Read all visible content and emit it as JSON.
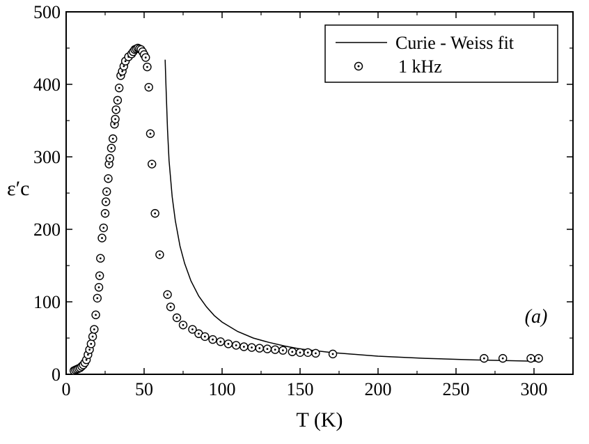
{
  "chart_data": {
    "type": "scatter",
    "title": "",
    "xlabel": "T (K)",
    "ylabel": "ε′c",
    "xlim": [
      0,
      325
    ],
    "ylim": [
      0,
      500
    ],
    "xticks": [
      0,
      50,
      100,
      150,
      200,
      250,
      300
    ],
    "yticks": [
      0,
      100,
      200,
      300,
      400,
      500
    ],
    "grid": false,
    "legend": {
      "position": "top-right",
      "entries": [
        "Curie - Weiss fit",
        "1 kHz"
      ]
    },
    "annotation": "(a)",
    "series": [
      {
        "name": "1 kHz",
        "marker": "circle-dot",
        "x": [
          5,
          6,
          7,
          8,
          9,
          10,
          11,
          12,
          13,
          14,
          15,
          16,
          17,
          18,
          19,
          20,
          21,
          21.5,
          22,
          23,
          24,
          25,
          25.5,
          26,
          27,
          27.5,
          28,
          29,
          30,
          31,
          31.5,
          32,
          33,
          34,
          35,
          36,
          37,
          38,
          40,
          42,
          43,
          44,
          45,
          46,
          47,
          48,
          49,
          50,
          51,
          52,
          53,
          54,
          55,
          57,
          60,
          65,
          67,
          71,
          75,
          81,
          85,
          89,
          94,
          99,
          104,
          109,
          114,
          119,
          124,
          129,
          134,
          139,
          145,
          150,
          155,
          160,
          171,
          268,
          280,
          298,
          303
        ],
        "y": [
          5,
          6,
          7,
          8,
          9,
          11,
          13,
          16,
          20,
          27,
          34,
          42,
          52,
          62,
          82,
          105,
          120,
          136,
          160,
          188,
          202,
          222,
          238,
          252,
          270,
          290,
          298,
          312,
          325,
          345,
          352,
          365,
          378,
          395,
          412,
          418,
          425,
          432,
          438,
          442,
          445,
          448,
          449,
          450,
          449,
          448,
          445,
          441,
          437,
          424,
          396,
          332,
          290,
          222,
          165,
          110,
          93,
          78,
          68,
          62,
          56,
          52,
          48,
          45,
          42,
          40,
          38,
          37,
          36,
          35,
          34,
          33,
          31,
          30,
          30,
          29,
          28,
          22,
          22,
          22,
          22
        ]
      },
      {
        "name": "Curie - Weiss fit",
        "marker": "line",
        "x": [
          63.5,
          64,
          65,
          66,
          68,
          70,
          73,
          76,
          80,
          85,
          90,
          95,
          100,
          110,
          120,
          130,
          140,
          150,
          170,
          200,
          230,
          260,
          303
        ],
        "y": [
          434,
          398,
          338,
          295,
          245,
          212,
          177,
          153,
          129,
          108,
          93,
          81,
          72,
          59,
          50,
          44,
          39,
          35,
          30,
          25,
          22,
          20,
          18
        ]
      }
    ]
  }
}
